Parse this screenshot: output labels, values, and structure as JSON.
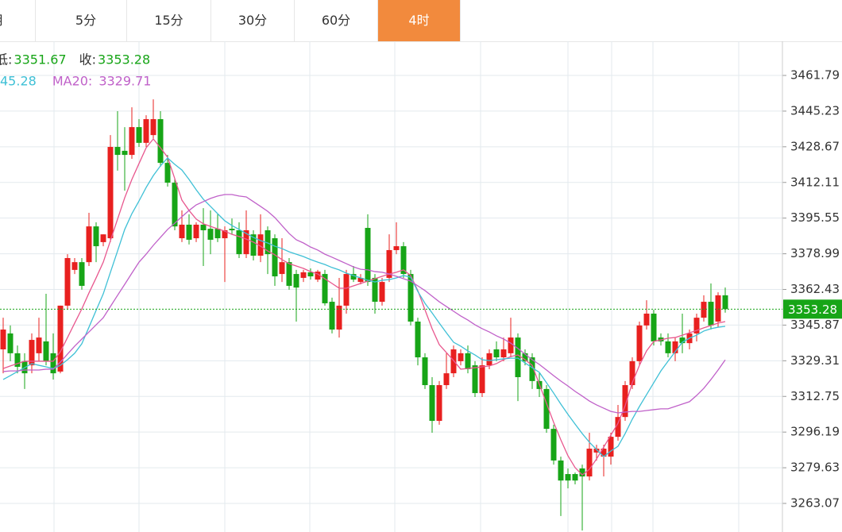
{
  "tabs": [
    "月",
    "5分",
    "15分",
    "30分",
    "60分",
    "4时"
  ],
  "active_tab": 5,
  "chart_data": {
    "type": "candlestick",
    "header": [
      {
        "label": "低:",
        "value": 3351.67
      },
      {
        "label": "收:",
        "value": 3353.28
      }
    ],
    "ma_legend": [
      {
        "text": "45.28",
        "color": "#3fc0d6"
      },
      {
        "text": "MA20:",
        "value": 3329.71,
        "color": "#c061c9"
      }
    ],
    "last_price": 3353.28,
    "ylim": [
      3249.8,
      3477.65
    ],
    "yticks": [
      3461.79,
      3445.23,
      3428.67,
      3412.11,
      3395.55,
      3378.99,
      3362.43,
      3345.87,
      3329.31,
      3312.75,
      3296.19,
      3279.63,
      3263.07
    ],
    "grid": true,
    "up_color": "#e8201f",
    "down_color": "#17a517",
    "ohlc": [
      [
        3334.6,
        3349.3,
        3323.5,
        3343.8
      ],
      [
        3342.0,
        3345.7,
        3329.1,
        3332.8
      ],
      [
        3332.8,
        3336.4,
        3323.5,
        3326.5
      ],
      [
        3329.1,
        3332.8,
        3316.2,
        3323.5
      ],
      [
        3327.2,
        3342.0,
        3323.5,
        3339.0
      ],
      [
        3332.8,
        3349.3,
        3329.1,
        3340.1
      ],
      [
        3338.3,
        3360.4,
        3327.2,
        3329.1
      ],
      [
        3332.8,
        3342.0,
        3320.6,
        3323.5
      ],
      [
        3324.3,
        3354.9,
        3323.5,
        3354.9
      ],
      [
        3354.9,
        3378.8,
        3353.0,
        3377.0
      ],
      [
        3371.5,
        3377.0,
        3369.6,
        3375.1
      ],
      [
        3375.1,
        3377.0,
        3362.3,
        3364.1
      ],
      [
        3375.1,
        3398.0,
        3373.3,
        3391.7
      ],
      [
        3391.7,
        3393.6,
        3375.1,
        3382.5
      ],
      [
        3384.4,
        3388.0,
        3382.5,
        3388.0
      ],
      [
        3386.2,
        3434.1,
        3384.4,
        3428.6
      ],
      [
        3428.6,
        3445.2,
        3417.6,
        3424.9
      ],
      [
        3426.8,
        3437.8,
        3408.3,
        3424.9
      ],
      [
        3424.9,
        3447.0,
        3423.1,
        3437.8
      ],
      [
        3437.8,
        3441.5,
        3428.6,
        3430.5
      ],
      [
        3430.5,
        3443.3,
        3428.6,
        3441.5
      ],
      [
        3434.1,
        3450.7,
        3432.3,
        3441.5
      ],
      [
        3441.5,
        3445.2,
        3419.4,
        3421.2
      ],
      [
        3421.2,
        3424.9,
        3410.2,
        3412.0
      ],
      [
        3412.0,
        3413.9,
        3389.9,
        3391.7
      ],
      [
        3386.2,
        3399.1,
        3384.4,
        3392.5
      ],
      [
        3392.5,
        3397.3,
        3383.3,
        3385.5
      ],
      [
        3386.2,
        3393.6,
        3384.4,
        3392.5
      ],
      [
        3392.5,
        3400.2,
        3373.3,
        3389.9
      ],
      [
        3390.6,
        3399.1,
        3378.8,
        3385.5
      ],
      [
        3390.6,
        3397.3,
        3384.4,
        3386.2
      ],
      [
        3386.2,
        3391.7,
        3365.9,
        3389.9
      ],
      [
        3390.6,
        3395.4,
        3388.0,
        3389.9
      ],
      [
        3389.9,
        3393.6,
        3377.0,
        3378.8
      ],
      [
        3378.8,
        3399.1,
        3377.0,
        3389.9
      ],
      [
        3388.0,
        3389.9,
        3375.9,
        3378.1
      ],
      [
        3378.1,
        3397.3,
        3375.1,
        3388.0
      ],
      [
        3389.9,
        3391.7,
        3369.6,
        3378.8
      ],
      [
        3386.2,
        3388.0,
        3364.1,
        3368.5
      ],
      [
        3369.6,
        3386.2,
        3365.9,
        3375.1
      ],
      [
        3375.1,
        3377.0,
        3362.3,
        3364.1
      ],
      [
        3369.6,
        3371.5,
        3347.5,
        3363.3
      ],
      [
        3367.8,
        3371.5,
        3365.9,
        3370.4
      ],
      [
        3370.4,
        3372.2,
        3367.0,
        3368.5
      ],
      [
        3367.0,
        3371.5,
        3365.9,
        3370.7
      ],
      [
        3369.6,
        3371.5,
        3354.9,
        3356.0
      ],
      [
        3356.7,
        3358.6,
        3342.0,
        3343.8
      ],
      [
        3343.8,
        3367.8,
        3340.1,
        3354.9
      ],
      [
        3354.9,
        3371.5,
        3351.2,
        3369.6
      ],
      [
        3369.6,
        3373.3,
        3365.9,
        3367.0
      ],
      [
        3365.9,
        3369.6,
        3364.8,
        3367.8
      ],
      [
        3391.0,
        3397.3,
        3364.1,
        3365.9
      ],
      [
        3367.8,
        3369.6,
        3351.2,
        3356.7
      ],
      [
        3356.7,
        3367.8,
        3354.9,
        3365.9
      ],
      [
        3367.8,
        3388.0,
        3365.9,
        3380.7
      ],
      [
        3380.7,
        3393.6,
        3378.8,
        3382.5
      ],
      [
        3382.5,
        3384.4,
        3367.8,
        3369.6
      ],
      [
        3369.6,
        3371.5,
        3345.7,
        3347.5
      ],
      [
        3347.5,
        3349.3,
        3327.2,
        3330.9
      ],
      [
        3330.9,
        3332.8,
        3316.2,
        3318.0
      ],
      [
        3318.0,
        3321.7,
        3295.9,
        3301.4
      ],
      [
        3301.4,
        3319.9,
        3299.6,
        3318.0
      ],
      [
        3318.0,
        3332.8,
        3316.2,
        3323.5
      ],
      [
        3323.5,
        3336.4,
        3321.7,
        3334.6
      ],
      [
        3329.1,
        3334.6,
        3327.2,
        3332.8
      ],
      [
        3332.8,
        3336.4,
        3323.5,
        3325.4
      ],
      [
        3327.2,
        3329.1,
        3312.5,
        3314.3
      ],
      [
        3314.3,
        3330.9,
        3312.5,
        3327.2
      ],
      [
        3327.2,
        3334.6,
        3325.4,
        3332.8
      ],
      [
        3334.6,
        3338.3,
        3329.1,
        3330.9
      ],
      [
        3330.9,
        3340.1,
        3329.1,
        3334.6
      ],
      [
        3332.8,
        3349.3,
        3330.9,
        3340.1
      ],
      [
        3340.1,
        3342.0,
        3310.6,
        3321.7
      ],
      [
        3332.8,
        3334.6,
        3327.2,
        3329.1
      ],
      [
        3330.9,
        3332.8,
        3316.2,
        3319.9
      ],
      [
        3319.9,
        3323.5,
        3312.5,
        3316.2
      ],
      [
        3316.2,
        3318.0,
        3295.9,
        3297.7
      ],
      [
        3297.7,
        3299.6,
        3281.1,
        3283.0
      ],
      [
        3283.0,
        3284.8,
        3257.2,
        3273.7
      ],
      [
        3276.7,
        3279.3,
        3270.1,
        3273.7
      ],
      [
        3276.7,
        3277.4,
        3271.9,
        3273.7
      ],
      [
        3279.3,
        3281.1,
        3250.5,
        3275.6
      ],
      [
        3275.6,
        3295.9,
        3273.7,
        3288.5
      ],
      [
        3286.7,
        3290.3,
        3283.0,
        3288.5
      ],
      [
        3284.8,
        3290.3,
        3275.6,
        3288.5
      ],
      [
        3284.8,
        3295.9,
        3281.1,
        3294.0
      ],
      [
        3294.0,
        3308.8,
        3292.2,
        3303.2
      ],
      [
        3303.2,
        3319.9,
        3301.4,
        3318.0
      ],
      [
        3318.0,
        3330.9,
        3316.2,
        3329.1
      ],
      [
        3329.1,
        3347.5,
        3327.2,
        3345.7
      ],
      [
        3345.7,
        3357.4,
        3343.8,
        3351.2
      ],
      [
        3351.2,
        3353.0,
        3336.4,
        3338.3
      ],
      [
        3340.1,
        3342.0,
        3336.4,
        3338.3
      ],
      [
        3338.3,
        3342.0,
        3330.9,
        3332.8
      ],
      [
        3332.8,
        3340.1,
        3329.1,
        3338.3
      ],
      [
        3340.1,
        3351.2,
        3332.8,
        3337.5
      ],
      [
        3337.5,
        3343.8,
        3334.6,
        3342.0
      ],
      [
        3342.0,
        3351.2,
        3338.3,
        3349.3
      ],
      [
        3349.3,
        3359.7,
        3347.5,
        3356.7
      ],
      [
        3356.7,
        3365.2,
        3343.8,
        3345.7
      ],
      [
        3347.5,
        3361.1,
        3344.9,
        3359.7
      ],
      [
        3359.7,
        3363.3,
        3351.67,
        3353.28
      ]
    ],
    "lines": [
      {
        "color": "#e8578e",
        "values": [
          3325.7,
          3326.9,
          3328.0,
          3329.1,
          3329.1,
          3329.1,
          3329.1,
          3329.1,
          3333.5,
          3340.1,
          3346.8,
          3353.4,
          3360.8,
          3367.8,
          3375.1,
          3385.1,
          3395.1,
          3405.0,
          3413.5,
          3420.9,
          3428.2,
          3432.3,
          3428.2,
          3423.8,
          3413.9,
          3403.9,
          3399.1,
          3395.1,
          3392.9,
          3391.7,
          3390.6,
          3389.5,
          3388.0,
          3387.0,
          3385.8,
          3384.4,
          3382.5,
          3380.3,
          3378.5,
          3376.3,
          3374.4,
          3373.3,
          3372.2,
          3370.7,
          3369.6,
          3367.4,
          3365.2,
          3363.0,
          3363.0,
          3364.1,
          3365.2,
          3366.3,
          3367.4,
          3368.5,
          3369.6,
          3370.4,
          3371.5,
          3368.9,
          3361.9,
          3353.0,
          3344.2,
          3336.8,
          3333.1,
          3329.4,
          3325.4,
          3325.7,
          3326.1,
          3326.5,
          3326.9,
          3328.0,
          3329.8,
          3331.3,
          3332.0,
          3329.8,
          3327.2,
          3318.4,
          3309.5,
          3300.7,
          3292.6,
          3285.2,
          3279.7,
          3276.3,
          3278.9,
          3283.7,
          3289.2,
          3294.8,
          3300.3,
          3308.4,
          3319.1,
          3327.2,
          3333.9,
          3338.3,
          3339.0,
          3339.8,
          3340.1,
          3341.2,
          3342.3,
          3343.4,
          3344.6,
          3345.7,
          3346.8,
          3347.5
        ]
      },
      {
        "color": "#3fc0d6",
        "values": [
          3320.6,
          3322.4,
          3324.3,
          3326.1,
          3328.0,
          3327.2,
          3326.5,
          3325.7,
          3327.2,
          3329.8,
          3332.8,
          3337.2,
          3344.9,
          3352.7,
          3360.4,
          3370.4,
          3380.3,
          3390.3,
          3397.6,
          3403.5,
          3409.8,
          3415.3,
          3419.8,
          3423.5,
          3420.5,
          3417.9,
          3413.5,
          3408.7,
          3404.3,
          3401.0,
          3397.6,
          3394.3,
          3392.1,
          3390.3,
          3388.4,
          3386.6,
          3385.1,
          3384.0,
          3382.5,
          3381.4,
          3379.9,
          3378.8,
          3377.7,
          3376.3,
          3375.1,
          3374.0,
          3372.6,
          3371.5,
          3370.0,
          3368.9,
          3367.8,
          3366.7,
          3365.9,
          3366.7,
          3367.0,
          3367.8,
          3368.9,
          3368.1,
          3361.5,
          3356.0,
          3351.5,
          3346.8,
          3342.3,
          3337.9,
          3336.1,
          3333.9,
          3332.0,
          3329.8,
          3329.4,
          3329.8,
          3330.2,
          3330.5,
          3330.5,
          3328.3,
          3326.1,
          3323.9,
          3319.1,
          3314.3,
          3309.2,
          3304.4,
          3299.9,
          3295.5,
          3291.5,
          3288.1,
          3284.8,
          3287.4,
          3289.6,
          3295.5,
          3302.2,
          3308.1,
          3313.6,
          3319.1,
          3324.6,
          3329.1,
          3333.5,
          3337.9,
          3339.8,
          3341.2,
          3343.1,
          3344.2,
          3344.9,
          3345.28
        ]
      },
      {
        "color": "#c061c9",
        "values": [
          3324.3,
          3324.6,
          3324.6,
          3325.0,
          3325.0,
          3325.0,
          3325.4,
          3325.4,
          3328.7,
          3332.4,
          3336.1,
          3339.4,
          3342.7,
          3346.0,
          3349.3,
          3354.5,
          3359.7,
          3364.8,
          3370.0,
          3375.1,
          3378.8,
          3382.9,
          3386.6,
          3390.3,
          3393.2,
          3396.2,
          3399.1,
          3401.7,
          3403.2,
          3404.7,
          3405.8,
          3406.5,
          3406.5,
          3405.8,
          3405.4,
          3403.2,
          3401.0,
          3398.7,
          3395.8,
          3392.1,
          3388.4,
          3385.5,
          3384.0,
          3382.1,
          3380.7,
          3378.8,
          3377.4,
          3375.9,
          3374.4,
          3372.9,
          3371.8,
          3371.5,
          3370.7,
          3370.4,
          3369.6,
          3368.5,
          3367.4,
          3366.3,
          3364.1,
          3361.9,
          3359.3,
          3356.7,
          3354.5,
          3352.3,
          3350.1,
          3348.2,
          3346.0,
          3344.2,
          3342.7,
          3340.9,
          3339.4,
          3337.5,
          3335.0,
          3332.4,
          3329.8,
          3327.6,
          3325.0,
          3322.4,
          3319.9,
          3317.6,
          3315.1,
          3312.9,
          3310.6,
          3308.8,
          3307.3,
          3305.8,
          3305.1,
          3305.5,
          3305.8,
          3305.8,
          3306.2,
          3306.6,
          3307.0,
          3307.0,
          3308.1,
          3309.2,
          3310.3,
          3313.2,
          3316.5,
          3320.6,
          3325.0,
          3329.71
        ]
      }
    ]
  }
}
